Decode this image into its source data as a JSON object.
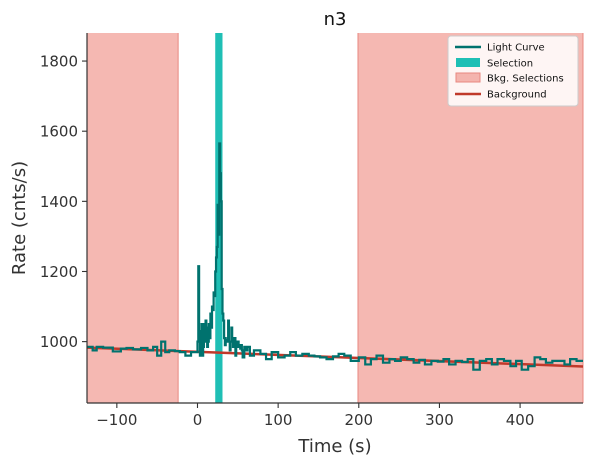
{
  "chart_data": {
    "type": "line",
    "title": "n3",
    "xlabel": "Time (s)",
    "ylabel": "Rate (cnts/s)",
    "xlim": [
      -137,
      478
    ],
    "ylim": [
      825,
      1880
    ],
    "xticks": [
      -100,
      0,
      100,
      200,
      300,
      400
    ],
    "yticks": [
      1000,
      1200,
      1400,
      1600,
      1800
    ],
    "xtick_labels": [
      "−100",
      "0",
      "100",
      "200",
      "300",
      "400"
    ],
    "ytick_labels": [
      "1000",
      "1200",
      "1400",
      "1600",
      "1800"
    ],
    "grid": false,
    "legend_position": "top-right",
    "colors": {
      "light_curve": "#00726e",
      "selection": "#1fbfb5",
      "bkg_selection": "#f4b4ae",
      "bkg_selection_edge": "#e88880",
      "background": "#c0392b"
    },
    "legend": [
      {
        "label": "Light Curve",
        "kind": "line",
        "color": "#00726e"
      },
      {
        "label": "Selection",
        "kind": "patch",
        "color": "#1fbfb5"
      },
      {
        "label": "Bkg. Selections",
        "kind": "patch",
        "color": "#f4b4ae"
      },
      {
        "label": "Background",
        "kind": "line",
        "color": "#c0392b"
      }
    ],
    "selection": {
      "x": [
        22,
        31
      ],
      "label": "Selection"
    },
    "bkg_selections": [
      {
        "x": [
          -137,
          -24
        ]
      },
      {
        "x": [
          199,
          478
        ]
      }
    ],
    "background_fit": {
      "x": [
        -137,
        478
      ],
      "y": [
        983,
        929
      ],
      "label": "Background"
    },
    "light_curve": {
      "label": "Light Curve",
      "x": [
        -137,
        -130,
        -125,
        -117,
        -110,
        -105,
        -95,
        -88,
        -80,
        -70,
        -62,
        -55,
        -50,
        -45,
        -40,
        -35,
        -28,
        -22,
        -15,
        -8,
        -3,
        0,
        1,
        2,
        3,
        4,
        5,
        6,
        7,
        8,
        9,
        10,
        11,
        12,
        13,
        14,
        15,
        16,
        17,
        18,
        19,
        20,
        21,
        22,
        23,
        24,
        25,
        26,
        27,
        28,
        29,
        30,
        31,
        32,
        33,
        34,
        35,
        36,
        37,
        38,
        39,
        40,
        41,
        42,
        43,
        44,
        45,
        46,
        47,
        48,
        49,
        50,
        51,
        52,
        53,
        54,
        55,
        56,
        58,
        60,
        62,
        65,
        70,
        78,
        85,
        92,
        100,
        108,
        115,
        122,
        130,
        138,
        145,
        152,
        160,
        168,
        175,
        182,
        190,
        200,
        208,
        215,
        222,
        230,
        238,
        245,
        252,
        260,
        268,
        275,
        282,
        290,
        298,
        305,
        312,
        320,
        328,
        335,
        342,
        350,
        358,
        365,
        372,
        380,
        388,
        395,
        402,
        410,
        418,
        425,
        432,
        440,
        448,
        455,
        462,
        470
      ],
      "y": [
        985,
        975,
        985,
        983,
        983,
        972,
        980,
        982,
        978,
        982,
        975,
        985,
        960,
        1000,
        970,
        975,
        973,
        970,
        960,
        970,
        970,
        1000,
        1215,
        1010,
        960,
        1030,
        1050,
        960,
        985,
        1050,
        1000,
        1060,
        1040,
        985,
        1000,
        1050,
        1010,
        1080,
        1040,
        1100,
        1090,
        1140,
        1130,
        1200,
        1240,
        1270,
        1390,
        1305,
        1565,
        1480,
        1400,
        1150,
        1080,
        1060,
        1010,
        990,
        1005,
        1000,
        1010,
        1060,
        1000,
        975,
        1000,
        1040,
        1010,
        985,
        1000,
        1010,
        960,
        985,
        1000,
        1000,
        985,
        990,
        980,
        990,
        975,
        955,
        985,
        975,
        985,
        960,
        975,
        965,
        950,
        970,
        955,
        960,
        970,
        960,
        965,
        960,
        958,
        955,
        950,
        958,
        965,
        960,
        945,
        955,
        935,
        950,
        960,
        940,
        950,
        945,
        955,
        950,
        940,
        948,
        935,
        945,
        943,
        950,
        935,
        945,
        942,
        950,
        920,
        945,
        950,
        935,
        950,
        945,
        930,
        945,
        920,
        930,
        955,
        950,
        940,
        945,
        945,
        935,
        950,
        945
      ]
    }
  }
}
